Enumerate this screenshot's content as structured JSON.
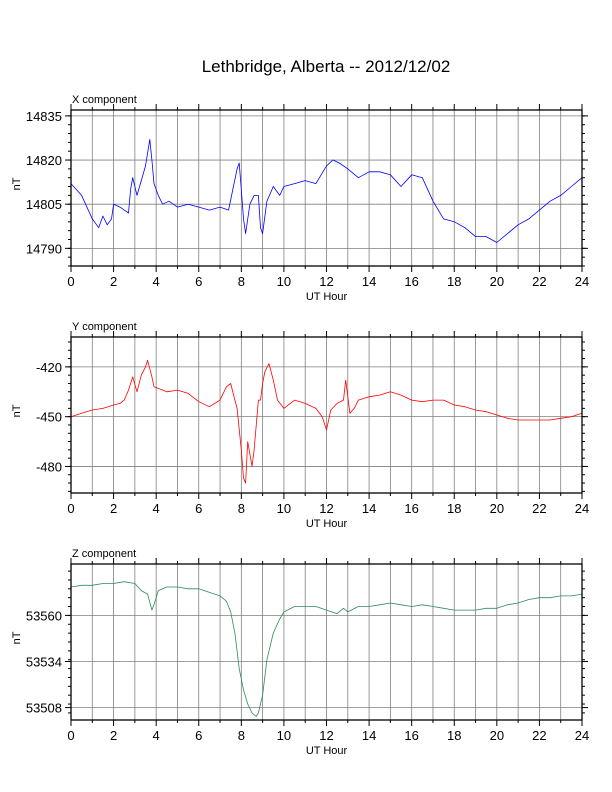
{
  "title": "Lethbridge, Alberta -- 2012/12/02",
  "colors": {
    "x": "#0000ff",
    "y": "#ff0000",
    "z": "#2e8b57",
    "grid": "#808080",
    "axis": "#000000"
  },
  "chart_data": [
    {
      "type": "line",
      "name": "X component",
      "xlabel": "UT Hour",
      "ylabel": "nT",
      "xlim": [
        0,
        24
      ],
      "ylim": [
        14784,
        14837
      ],
      "xticks": [
        "0",
        "2",
        "4",
        "6",
        "8",
        "10",
        "12",
        "14",
        "16",
        "18",
        "20",
        "22",
        "24"
      ],
      "yticks": [
        "14790",
        "14805",
        "14820",
        "14835"
      ],
      "grid": true,
      "series": [
        {
          "x": [
            0,
            0.5,
            1,
            1.3,
            1.5,
            1.7,
            1.9,
            2,
            2.3,
            2.5,
            2.7,
            2.8,
            2.9,
            3.1,
            3.3,
            3.5,
            3.7,
            3.8,
            3.9,
            4.1,
            4.3,
            4.6,
            5,
            5.5,
            6,
            6.5,
            7,
            7.4,
            7.6,
            7.8,
            7.9,
            8.0,
            8.1,
            8.2,
            8.4,
            8.6,
            8.8,
            8.9,
            9.0,
            9.2,
            9.5,
            9.8,
            10,
            10.5,
            11,
            11.5,
            12,
            12.3,
            12.6,
            13,
            13.5,
            14,
            14.5,
            15,
            15.5,
            16,
            16.5,
            17,
            17.5,
            18,
            18.5,
            19,
            19.5,
            20,
            20.5,
            21,
            21.5,
            22,
            22.5,
            23,
            23.5,
            24
          ],
          "values": [
            14812,
            14808,
            14800,
            14797,
            14801,
            14798,
            14800,
            14805,
            14804,
            14803,
            14802,
            14810,
            14814,
            14808,
            14813,
            14818,
            14827,
            14820,
            14812,
            14808,
            14805,
            14806,
            14804,
            14805,
            14804,
            14803,
            14804,
            14803,
            14810,
            14817,
            14819,
            14810,
            14800,
            14795,
            14805,
            14808,
            14808,
            14797,
            14795,
            14806,
            14811,
            14808,
            14811,
            14812,
            14813,
            14812,
            14818,
            14820,
            14819,
            14817,
            14814,
            14816,
            14816,
            14815,
            14811,
            14815,
            14814,
            14806,
            14800,
            14799,
            14797,
            14794,
            14794,
            14792,
            14795,
            14798,
            14800,
            14803,
            14806,
            14808,
            14811,
            14814
          ]
        }
      ]
    },
    {
      "type": "line",
      "name": "Y component",
      "xlabel": "UT Hour",
      "ylabel": "nT",
      "xlim": [
        0,
        24
      ],
      "ylim": [
        -496,
        -402
      ],
      "xticks": [
        "0",
        "2",
        "4",
        "6",
        "8",
        "10",
        "12",
        "14",
        "16",
        "18",
        "20",
        "22",
        "24"
      ],
      "yticks": [
        "-420",
        "-450",
        "-480"
      ],
      "grid": true,
      "series": [
        {
          "x": [
            0,
            0.5,
            1,
            1.5,
            2,
            2.3,
            2.5,
            2.7,
            2.9,
            3.1,
            3.3,
            3.5,
            3.6,
            3.8,
            3.9,
            4.1,
            4.5,
            5,
            5.5,
            6,
            6.5,
            7,
            7.3,
            7.5,
            7.7,
            7.8,
            8.0,
            8.1,
            8.2,
            8.3,
            8.5,
            8.6,
            8.8,
            8.9,
            9.0,
            9.1,
            9.3,
            9.5,
            9.7,
            10,
            10.5,
            11,
            11.5,
            11.8,
            12,
            12.2,
            12.5,
            12.8,
            12.9,
            13.1,
            13.3,
            13.5,
            14,
            14.5,
            15,
            15.5,
            16,
            16.5,
            17,
            17.5,
            18,
            18.5,
            19,
            19.5,
            20,
            20.5,
            21,
            21.5,
            22,
            22.5,
            23,
            23.5,
            24
          ],
          "values": [
            -450,
            -448,
            -446,
            -445,
            -443,
            -442,
            -440,
            -434,
            -426,
            -435,
            -425,
            -420,
            -416,
            -426,
            -432,
            -433,
            -435,
            -434,
            -436,
            -441,
            -444,
            -440,
            -432,
            -430,
            -440,
            -445,
            -470,
            -487,
            -490,
            -465,
            -480,
            -470,
            -440,
            -440,
            -430,
            -423,
            -418,
            -428,
            -440,
            -445,
            -440,
            -442,
            -445,
            -450,
            -458,
            -446,
            -442,
            -440,
            -428,
            -448,
            -445,
            -440,
            -438,
            -437,
            -435,
            -437,
            -440,
            -441,
            -440,
            -440,
            -443,
            -444,
            -446,
            -447,
            -449,
            -451,
            -452,
            -452,
            -452,
            -452,
            -451,
            -450,
            -448
          ]
        }
      ]
    },
    {
      "type": "line",
      "name": "Z component",
      "xlabel": "UT Hour",
      "ylabel": "nT",
      "xlim": [
        0,
        24
      ],
      "ylim": [
        53501,
        53589
      ],
      "xticks": [
        "0",
        "2",
        "4",
        "6",
        "8",
        "10",
        "12",
        "14",
        "16",
        "18",
        "20",
        "22",
        "24"
      ],
      "yticks": [
        "53560",
        "53534",
        "53508"
      ],
      "grid": true,
      "series": [
        {
          "x": [
            0,
            0.5,
            1,
            1.5,
            2,
            2.5,
            3,
            3.3,
            3.6,
            3.8,
            3.9,
            4.1,
            4.5,
            5,
            5.5,
            6,
            6.5,
            7,
            7.3,
            7.5,
            7.7,
            7.9,
            8.1,
            8.3,
            8.5,
            8.7,
            8.8,
            9.0,
            9.2,
            9.5,
            9.8,
            10,
            10.5,
            11,
            11.5,
            12,
            12.5,
            12.8,
            13,
            13.5,
            14,
            14.5,
            15,
            15.5,
            16,
            16.5,
            17,
            17.5,
            18,
            18.5,
            19,
            19.5,
            20,
            20.5,
            21,
            21.5,
            22,
            22.5,
            23,
            23.5,
            24
          ],
          "values": [
            53576,
            53577,
            53577,
            53578,
            53578,
            53579,
            53578,
            53574,
            53572,
            53563,
            53566,
            53574,
            53576,
            53576,
            53575,
            53575,
            53573,
            53571,
            53568,
            53562,
            53550,
            53530,
            53518,
            53510,
            53505,
            53503,
            53505,
            53515,
            53535,
            53550,
            53558,
            53562,
            53565,
            53565,
            53565,
            53563,
            53561,
            53564,
            53562,
            53565,
            53565,
            53566,
            53567,
            53566,
            53565,
            53566,
            53565,
            53564,
            53563,
            53563,
            53563,
            53564,
            53564,
            53566,
            53567,
            53569,
            53570,
            53570,
            53571,
            53571,
            53572
          ]
        }
      ]
    }
  ]
}
